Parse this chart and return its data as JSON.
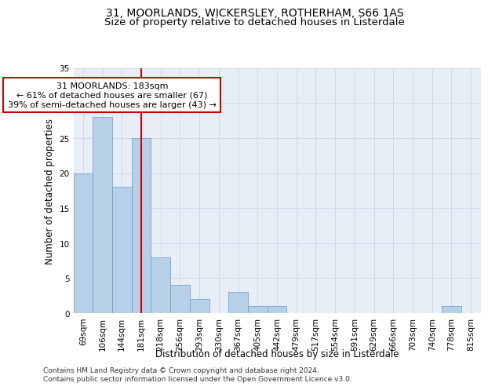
{
  "title": "31, MOORLANDS, WICKERSLEY, ROTHERHAM, S66 1AS",
  "subtitle": "Size of property relative to detached houses in Listerdale",
  "xlabel_bottom": "Distribution of detached houses by size in Listerdale",
  "ylabel": "Number of detached properties",
  "categories": [
    "69sqm",
    "106sqm",
    "144sqm",
    "181sqm",
    "218sqm",
    "256sqm",
    "293sqm",
    "330sqm",
    "367sqm",
    "405sqm",
    "442sqm",
    "479sqm",
    "517sqm",
    "554sqm",
    "591sqm",
    "629sqm",
    "666sqm",
    "703sqm",
    "740sqm",
    "778sqm",
    "815sqm"
  ],
  "values": [
    20,
    28,
    18,
    25,
    8,
    4,
    2,
    0,
    3,
    1,
    1,
    0,
    0,
    0,
    0,
    0,
    0,
    0,
    0,
    1,
    0
  ],
  "bar_color": "#b8cfe8",
  "bar_edge_color": "#6699cc",
  "reference_line_x": 3,
  "annotation_text": "31 MOORLANDS: 183sqm\n← 61% of detached houses are smaller (67)\n39% of semi-detached houses are larger (43) →",
  "annotation_box_color": "#ffffff",
  "annotation_box_edge_color": "#cc0000",
  "ylim": [
    0,
    35
  ],
  "yticks": [
    0,
    5,
    10,
    15,
    20,
    25,
    30,
    35
  ],
  "grid_color": "#d0d8e8",
  "background_color": "#e8eef6",
  "ref_line_color": "#cc0000",
  "footer_text": "Contains HM Land Registry data © Crown copyright and database right 2024.\nContains public sector information licensed under the Open Government Licence v3.0.",
  "title_fontsize": 10,
  "subtitle_fontsize": 9.5,
  "axis_label_fontsize": 8.5,
  "tick_fontsize": 7.5,
  "annotation_fontsize": 8,
  "footer_fontsize": 6.5
}
